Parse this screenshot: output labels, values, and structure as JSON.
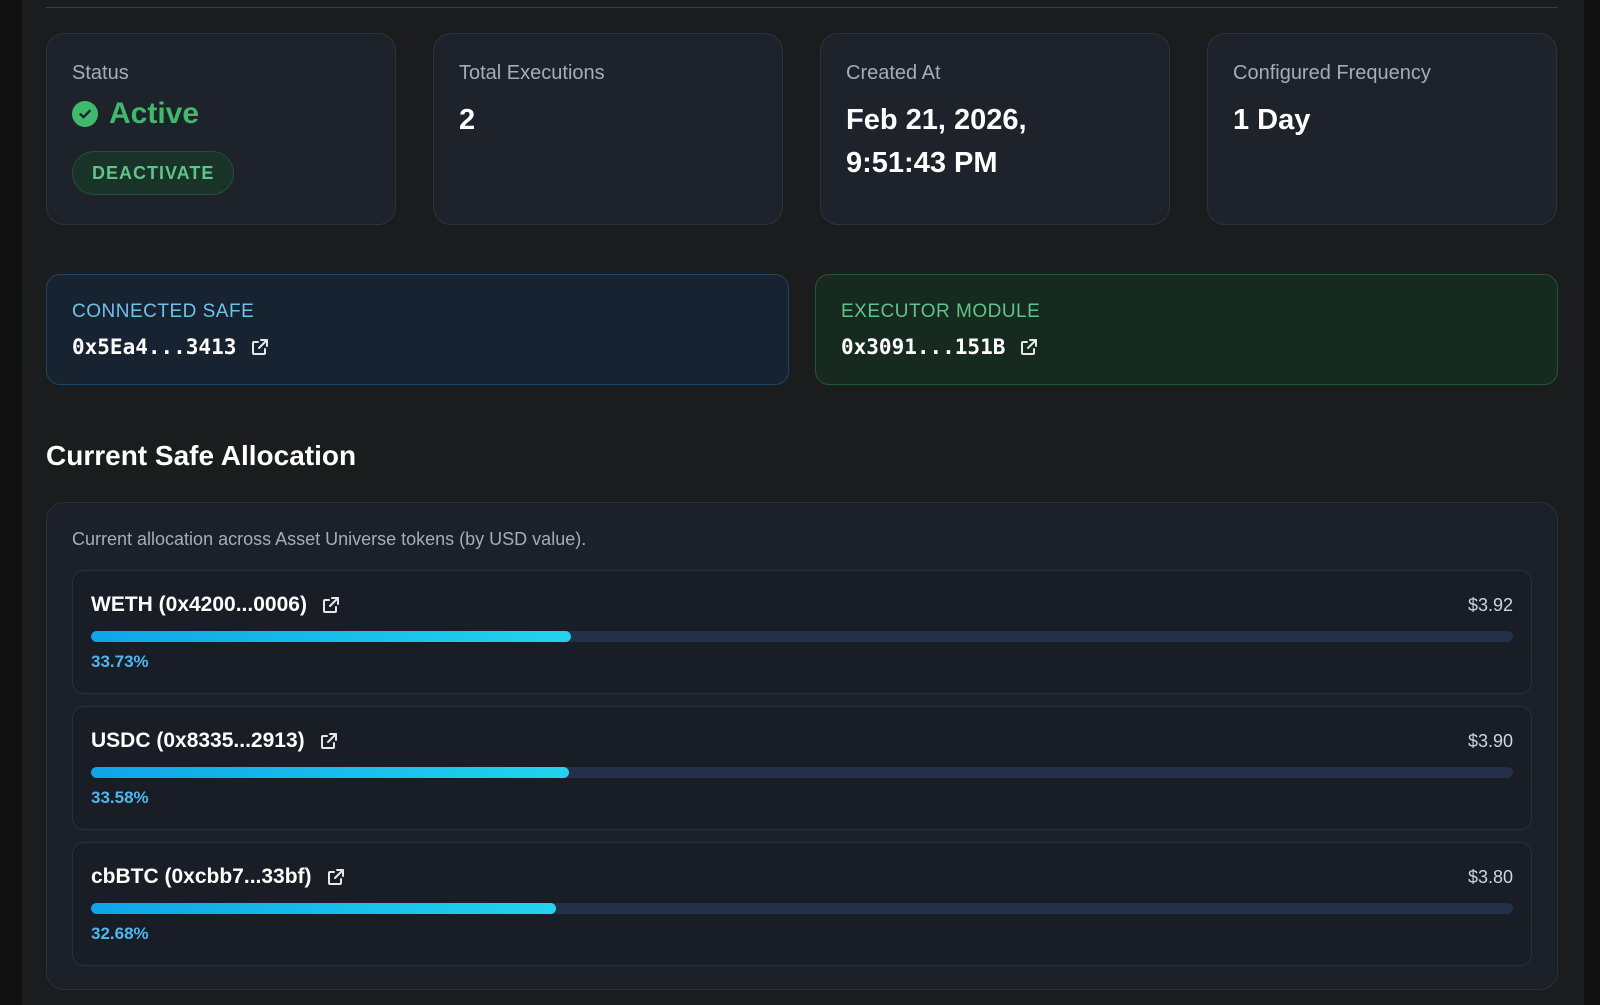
{
  "stats": {
    "status": {
      "label": "Status",
      "value": "Active",
      "button": "DEACTIVATE"
    },
    "executions": {
      "label": "Total Executions",
      "value": "2"
    },
    "created": {
      "label": "Created At",
      "line1": "Feb 21, 2026,",
      "line2": "9:51:43 PM"
    },
    "frequency": {
      "label": "Configured Frequency",
      "value": "1 Day"
    }
  },
  "connected_safe": {
    "label": "CONNECTED SAFE",
    "address": "0x5Ea4...3413"
  },
  "executor_module": {
    "label": "EXECUTOR MODULE",
    "address": "0x3091...151B"
  },
  "allocation": {
    "title": "Current Safe Allocation",
    "description": "Current allocation across Asset Universe tokens (by USD value).",
    "tokens": [
      {
        "name": "WETH (0x4200...0006)",
        "usd": "$3.92",
        "percent_label": "33.73%",
        "percent": 33.73
      },
      {
        "name": "USDC (0x8335...2913)",
        "usd": "$3.90",
        "percent_label": "33.58%",
        "percent": 33.58
      },
      {
        "name": "cbBTC (0xcbb7...33bf)",
        "usd": "$3.80",
        "percent_label": "32.68%",
        "percent": 32.68
      }
    ]
  },
  "colors": {
    "active": "#3fb96b",
    "safe_accent": "#6fc2ea",
    "executor_accent": "#5ec48a",
    "bar": "#0ea5e9"
  },
  "icons": {
    "status": "check-circle-icon",
    "link": "external-link-icon"
  }
}
